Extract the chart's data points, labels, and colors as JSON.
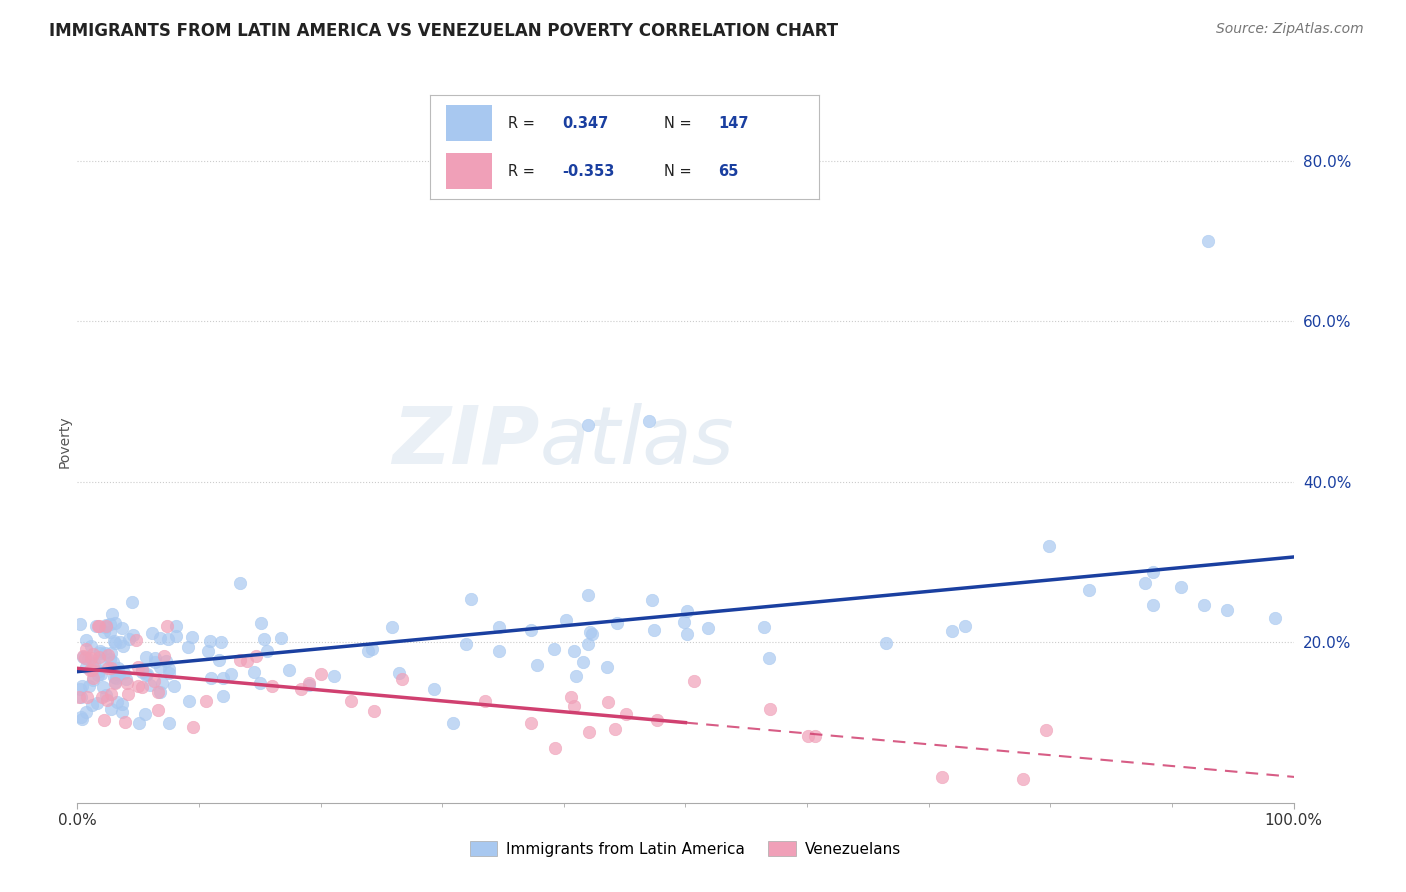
{
  "title": "IMMIGRANTS FROM LATIN AMERICA VS VENEZUELAN POVERTY CORRELATION CHART",
  "source": "Source: ZipAtlas.com",
  "ylabel": "Poverty",
  "r1": 0.347,
  "n1": 147,
  "r2": -0.353,
  "n2": 65,
  "legend1": "Immigrants from Latin America",
  "legend2": "Venezuelans",
  "color_blue": "#a8c8f0",
  "color_pink": "#f0a0b8",
  "line_color_blue": "#1a3fa0",
  "line_color_pink": "#d04070",
  "bg_color": "#ffffff",
  "watermark_zip": "ZIP",
  "watermark_atlas": "atlas",
  "ytick_vals": [
    20,
    40,
    60,
    80
  ],
  "ymin": 0,
  "ymax": 90,
  "xmin": 0,
  "xmax": 100,
  "title_fontsize": 12,
  "source_fontsize": 10,
  "tick_fontsize": 11
}
